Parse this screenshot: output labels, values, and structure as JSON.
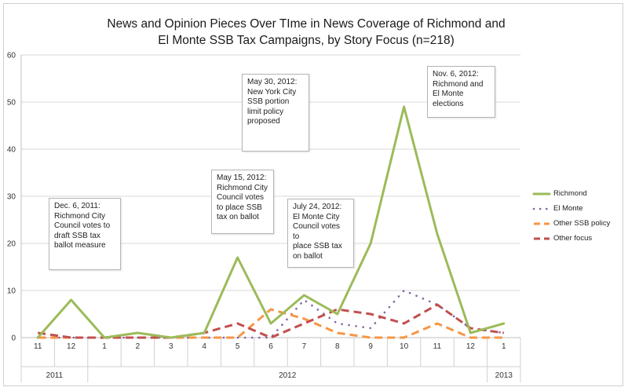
{
  "chart_data": {
    "type": "line",
    "title": "News and Opinion Pieces Over TIme in News Coverage of Richmond and El Monte SSB Tax Campaigns, by Story Focus (n=218)",
    "title_lines": [
      "News and Opinion Pieces Over TIme in News Coverage of Richmond and",
      "El Monte SSB Tax Campaigns, by Story Focus (n=218)"
    ],
    "categories": [
      "11",
      "12",
      "1",
      "2",
      "3",
      "4",
      "5",
      "6",
      "7",
      "8",
      "9",
      "10",
      "11",
      "12",
      "1"
    ],
    "year_groups": [
      {
        "label": "2011",
        "span": 2
      },
      {
        "label": "2012",
        "span": 12
      },
      {
        "label": "2013",
        "span": 1
      }
    ],
    "ylim": [
      0,
      60
    ],
    "yticks": [
      0,
      10,
      20,
      30,
      40,
      50,
      60
    ],
    "grid": true,
    "legend_position": "right",
    "series": [
      {
        "name": "Richmond",
        "color": "#9bbb59",
        "style": "solid",
        "values": [
          0,
          8,
          0,
          1,
          0,
          1,
          17,
          3,
          9,
          5,
          20,
          49,
          22,
          1,
          3
        ]
      },
      {
        "name": "El Monte",
        "color": "#8064a2",
        "style": "dotted",
        "values": [
          0,
          0,
          0,
          0,
          0,
          0,
          0,
          0,
          8,
          3,
          2,
          10,
          7,
          2,
          1
        ]
      },
      {
        "name": "Other SSB policy",
        "color": "#f79646",
        "style": "dashed",
        "values": [
          0,
          0,
          0,
          0,
          0,
          0,
          0,
          6,
          4,
          1,
          0,
          0,
          3,
          0,
          0
        ]
      },
      {
        "name": "Other focus",
        "color": "#c0504d",
        "style": "dashed",
        "values": [
          1,
          0,
          0,
          0,
          0,
          1,
          3,
          0,
          3,
          6,
          5,
          3,
          7,
          2,
          1
        ]
      }
    ],
    "annotations": [
      {
        "lines": [
          "Dec. 6, 2011:",
          "Richmond City",
          "Council votes to",
          "draft SSB tax",
          "ballot measure"
        ]
      },
      {
        "lines": [
          "May 15, 2012:",
          "Richmond City",
          "Council votes",
          "to place SSB",
          "tax on ballot"
        ]
      },
      {
        "lines": [
          "May 30, 2012:",
          "New York City",
          "SSB portion",
          "limit policy",
          "proposed"
        ]
      },
      {
        "lines": [
          "July 24, 2012:",
          "El Monte City",
          "Council votes to",
          "place SSB tax",
          "on ballot"
        ]
      },
      {
        "lines": [
          "Nov. 6, 2012:",
          "Richmond and",
          "El Monte",
          "elections"
        ]
      }
    ]
  }
}
